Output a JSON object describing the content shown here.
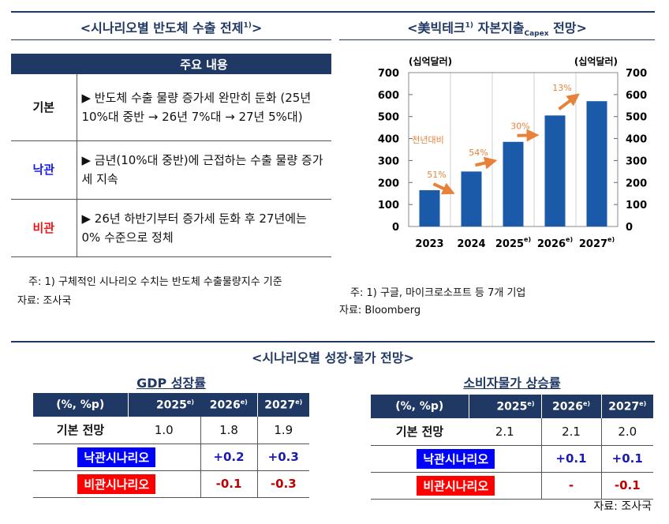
{
  "left_panel": {
    "title": "<시나리오별 반도체 수출 전제",
    "title_sup": "1)",
    "title_end": ">",
    "table_header": "주요 내용",
    "rows": [
      {
        "label": "기본",
        "color": "#111111",
        "text": "▶ 반도체 수출 물량 증가세 완만히 둔화 (25년 10%대 중반 → 26년 7%대 → 27년 5%대)"
      },
      {
        "label": "낙관",
        "color": "#1a1ae6",
        "text": "▶ 금년(10%대 중반)에 근접하는 수출 물량 증가세 지속"
      },
      {
        "label": "비관",
        "color": "#e61a1a",
        "text": "▶ 26년 하반기부터 증가세 둔화 후 27년에는 0% 수준으로 정체"
      }
    ],
    "note": "주: 1) 구체적인 시나리오 수치는 반도체 수출물량지수 기준",
    "source": "자료: 조사국"
  },
  "right_panel": {
    "title": "<美빅테크",
    "title_sup": "1)",
    "title_mid": " 자본지출",
    "title_sub": "Capex",
    "title_end": " 전망>",
    "note": "주: 1) 구글, 마이크로소프트 등 7개 기업",
    "source": "자료: Bloomberg"
  },
  "chart_data": {
    "type": "bar",
    "categories": [
      "2023",
      "2024",
      "2025",
      "2026",
      "2027"
    ],
    "category_sups": [
      "",
      "",
      "e)",
      "e)",
      "e)"
    ],
    "values": [
      165,
      250,
      385,
      505,
      570
    ],
    "ylabel_left": "(십억달러)",
    "ylabel_right": "(십억달러)",
    "ylim": [
      0,
      700
    ],
    "yticks": [
      0,
      100,
      200,
      300,
      400,
      500,
      600,
      700
    ],
    "grid": true,
    "bar_color": "#1a5aa8",
    "growth_label": "전년대비",
    "growth": [
      "51%",
      "54%",
      "30%",
      "13%"
    ],
    "growth_color": "#e8813a"
  },
  "bottom": {
    "title": "<시나리오별 성장·물가 전망>",
    "source": "자료: 조사국",
    "tables": [
      {
        "title": "GDP 성장률",
        "unit": "(%, %p)",
        "years": [
          "2025",
          "2026",
          "2027"
        ],
        "sup": "e)",
        "base_label": "기본 전망",
        "base": [
          "1.0",
          "1.8",
          "1.9"
        ],
        "opt_label": "낙관시나리오",
        "opt": [
          "+0.2",
          "+0.3"
        ],
        "pes_label": "비관시나리오",
        "pes": [
          "-0.1",
          "-0.3"
        ]
      },
      {
        "title": "소비자물가 상승률",
        "unit": "(%, %p)",
        "years": [
          "2025",
          "2026",
          "2027"
        ],
        "sup": "e)",
        "base_label": "기본 전망",
        "base": [
          "2.1",
          "2.1",
          "2.0"
        ],
        "opt_label": "낙관시나리오",
        "opt": [
          "+0.1",
          "+0.1"
        ],
        "pes_label": "비관시나리오",
        "pes": [
          "-",
          "-0.1"
        ]
      }
    ],
    "opt_color": "#0000ff",
    "pes_color": "#ff0000",
    "opt_text_color": "#1a1ab4",
    "pes_text_color": "#c00000"
  }
}
